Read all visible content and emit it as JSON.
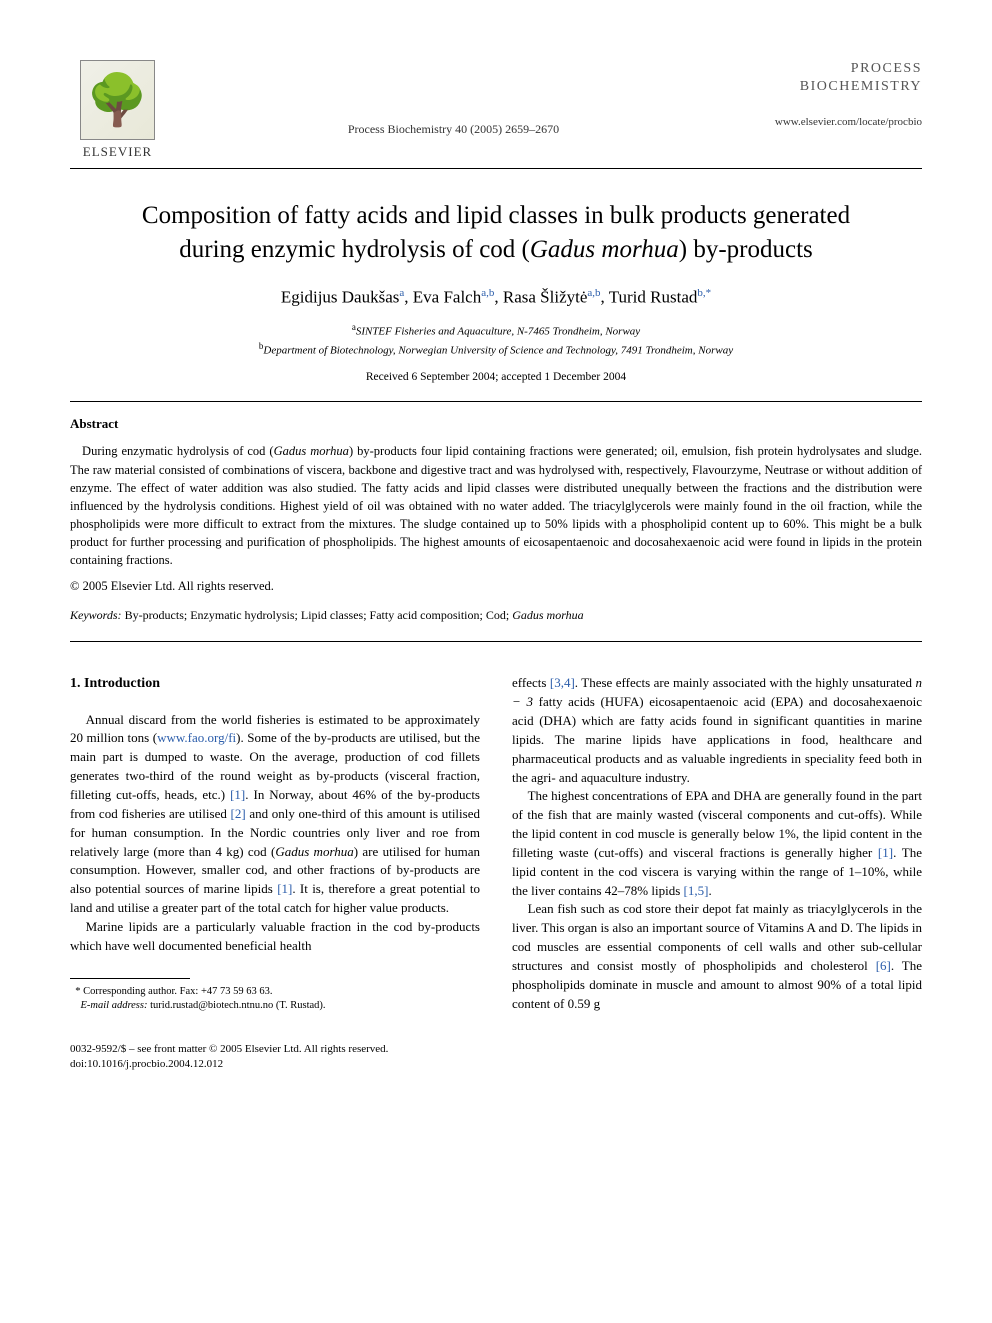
{
  "header": {
    "publisher_name": "ELSEVIER",
    "journal_ref": "Process Biochemistry 40 (2005) 2659–2670",
    "journal_title_line1": "PROCESS",
    "journal_title_line2": "BIOCHEMISTRY",
    "journal_url": "www.elsevier.com/locate/procbio"
  },
  "article": {
    "title_pre": "Composition of fatty acids and lipid classes in bulk products generated during enzymic hydrolysis of cod (",
    "title_species": "Gadus morhua",
    "title_post": ") by-products"
  },
  "authors": {
    "a1_name": "Egidijus Daukšas",
    "a1_sup": "a",
    "a2_name": "Eva Falch",
    "a2_sup": "a,b",
    "a3_name": "Rasa Šližytė",
    "a3_sup": "a,b",
    "a4_name": "Turid Rustad",
    "a4_sup": "b,*"
  },
  "affiliations": {
    "a_sup": "a",
    "a_text": "SINTEF Fisheries and Aquaculture, N-7465 Trondheim, Norway",
    "b_sup": "b",
    "b_text": "Department of Biotechnology, Norwegian University of Science and Technology, 7491 Trondheim, Norway"
  },
  "dates": "Received 6 September 2004; accepted 1 December 2004",
  "abstract": {
    "heading": "Abstract",
    "text_pre": "During enzymatic hydrolysis of cod (",
    "text_species": "Gadus morhua",
    "text_post": ") by-products four lipid containing fractions were generated; oil, emulsion, fish protein hydrolysates and sludge. The raw material consisted of combinations of viscera, backbone and digestive tract and was hydrolysed with, respectively, Flavourzyme, Neutrase or without addition of enzyme. The effect of water addition was also studied. The fatty acids and lipid classes were distributed unequally between the fractions and the distribution were influenced by the hydrolysis conditions. Highest yield of oil was obtained with no water added. The triacylglycerols were mainly found in the oil fraction, while the phospholipids were more difficult to extract from the mixtures. The sludge contained up to 50% lipids with a phospholipid content up to 60%. This might be a bulk product for further processing and purification of phospholipids. The highest amounts of eicosapentaenoic and docosahexaenoic acid were found in lipids in the protein containing fractions.",
    "copyright": "© 2005 Elsevier Ltd. All rights reserved."
  },
  "keywords": {
    "label": "Keywords:",
    "text_pre": " By-products; Enzymatic hydrolysis; Lipid classes; Fatty acid composition; Cod; ",
    "text_species": "Gadus morhua"
  },
  "body": {
    "section_heading": "1. Introduction",
    "left_p1_pre": "Annual discard from the world fisheries is estimated to be approximately 20 million tons (",
    "left_p1_url": "www.fao.org/fi",
    "left_p1_mid1": "). Some of the by-products are utilised, but the main part is dumped to waste. On the average, production of cod fillets generates two-third of the round weight as by-products (visceral fraction, filleting cut-offs, heads, etc.) ",
    "left_p1_ref1": "[1]",
    "left_p1_mid2": ". In Norway, about 46% of the by-products from cod fisheries are utilised ",
    "left_p1_ref2": "[2]",
    "left_p1_mid3": " and only one-third of this amount is utilised for human consumption. In the Nordic countries only liver and roe from relatively large (more than 4 kg) cod (",
    "left_p1_species": "Gadus morhua",
    "left_p1_mid4": ") are utilised for human consumption. However, smaller cod, and other fractions of by-products are also potential sources of marine lipids ",
    "left_p1_ref3": "[1]",
    "left_p1_post": ". It is, therefore a great potential to land and utilise a greater part of the total catch for higher value products.",
    "left_p2": "Marine lipids are a particularly valuable fraction in the cod by-products which have well documented beneficial health",
    "right_p1_pre": "effects ",
    "right_p1_ref1": "[3,4]",
    "right_p1_mid1": ". These effects are mainly associated with the highly unsaturated ",
    "right_p1_formula": "n − 3",
    "right_p1_post": " fatty acids (HUFA) eicosapentaenoic acid (EPA) and docosahexaenoic acid (DHA) which are fatty acids found in significant quantities in marine lipids. The marine lipids have applications in food, healthcare and pharmaceutical products and as valuable ingredients in speciality feed both in the agri- and aquaculture industry.",
    "right_p2_pre": "The highest concentrations of EPA and DHA are generally found in the part of the fish that are mainly wasted (visceral components and cut-offs). While the lipid content in cod muscle is generally below 1%, the lipid content in the filleting waste (cut-offs) and visceral fractions is generally higher ",
    "right_p2_ref1": "[1]",
    "right_p2_mid": ". The lipid content in the cod viscera is varying within the range of 1–10%, while the liver contains 42–78% lipids ",
    "right_p2_ref2": "[1,5]",
    "right_p2_post": ".",
    "right_p3_pre": "Lean fish such as cod store their depot fat mainly as triacylglycerols in the liver. This organ is also an important source of Vitamins A and D. The lipids in cod muscles are essential components of cell walls and other sub-cellular structures and consist mostly of phospholipids and cholesterol ",
    "right_p3_ref1": "[6]",
    "right_p3_post": ". The phospholipids dominate in muscle and amount to almost 90% of a total lipid content of 0.59 g"
  },
  "footnotes": {
    "corr_marker": "*",
    "corr_text": " Corresponding author. Fax: +47 73 59 63 63.",
    "email_label": "E-mail address:",
    "email_value": " turid.rustad@biotech.ntnu.no (T. Rustad)."
  },
  "footer": {
    "line1": "0032-9592/$ – see front matter © 2005 Elsevier Ltd. All rights reserved.",
    "line2": "doi:10.1016/j.procbio.2004.12.012"
  }
}
